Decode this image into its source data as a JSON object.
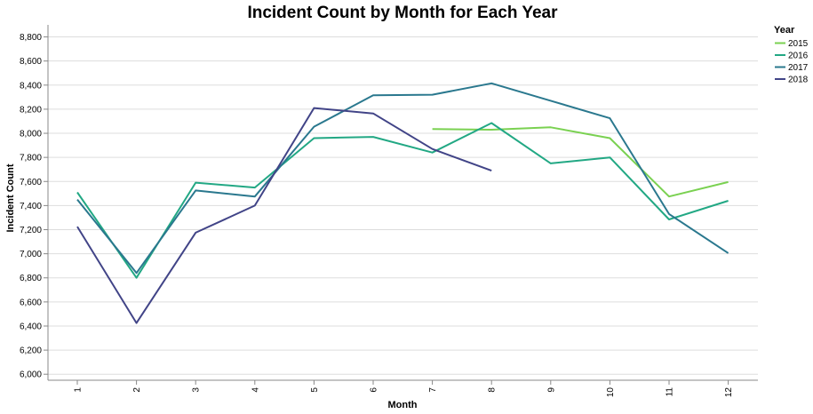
{
  "chart_data": {
    "type": "line",
    "title": "Incident Count by Month for Each Year",
    "xlabel": "Month",
    "ylabel": "Incident Count",
    "categories": [
      1,
      2,
      3,
      4,
      5,
      6,
      7,
      8,
      9,
      10,
      11,
      12
    ],
    "ylim": [
      5950,
      8900
    ],
    "yticks": [
      6000,
      6200,
      6400,
      6600,
      6800,
      7000,
      7200,
      7400,
      7600,
      7800,
      8000,
      8200,
      8400,
      8600,
      8800
    ],
    "ytick_labels": [
      "6,000",
      "6,200",
      "6,400",
      "6,600",
      "6,800",
      "7,000",
      "7,200",
      "7,400",
      "7,600",
      "7,800",
      "8,000",
      "8,200",
      "8,400",
      "8,600",
      "8,800"
    ],
    "grid": true,
    "legend": {
      "title": "Year",
      "position": "right"
    },
    "series": [
      {
        "name": "2015",
        "color": "#7ad151",
        "x": [
          7,
          8,
          9,
          10,
          11,
          12
        ],
        "values": [
          8035,
          8030,
          8050,
          7960,
          7475,
          7595
        ]
      },
      {
        "name": "2016",
        "color": "#22a884",
        "x": [
          1,
          2,
          3,
          4,
          5,
          6,
          7,
          8,
          9,
          10,
          11,
          12
        ],
        "values": [
          7510,
          6800,
          7590,
          7550,
          7960,
          7970,
          7840,
          8085,
          7750,
          7800,
          7285,
          7440
        ]
      },
      {
        "name": "2017",
        "color": "#2a788e",
        "x": [
          1,
          2,
          3,
          4,
          5,
          6,
          7,
          8,
          9,
          10,
          11,
          12
        ],
        "values": [
          7450,
          6840,
          7525,
          7475,
          8055,
          8315,
          8320,
          8415,
          8270,
          8125,
          7330,
          7005
        ]
      },
      {
        "name": "2018",
        "color": "#414487",
        "x": [
          1,
          2,
          3,
          4,
          5,
          6,
          7,
          8
        ],
        "values": [
          7225,
          6425,
          7175,
          7400,
          8210,
          8165,
          7870,
          7690
        ]
      }
    ]
  }
}
